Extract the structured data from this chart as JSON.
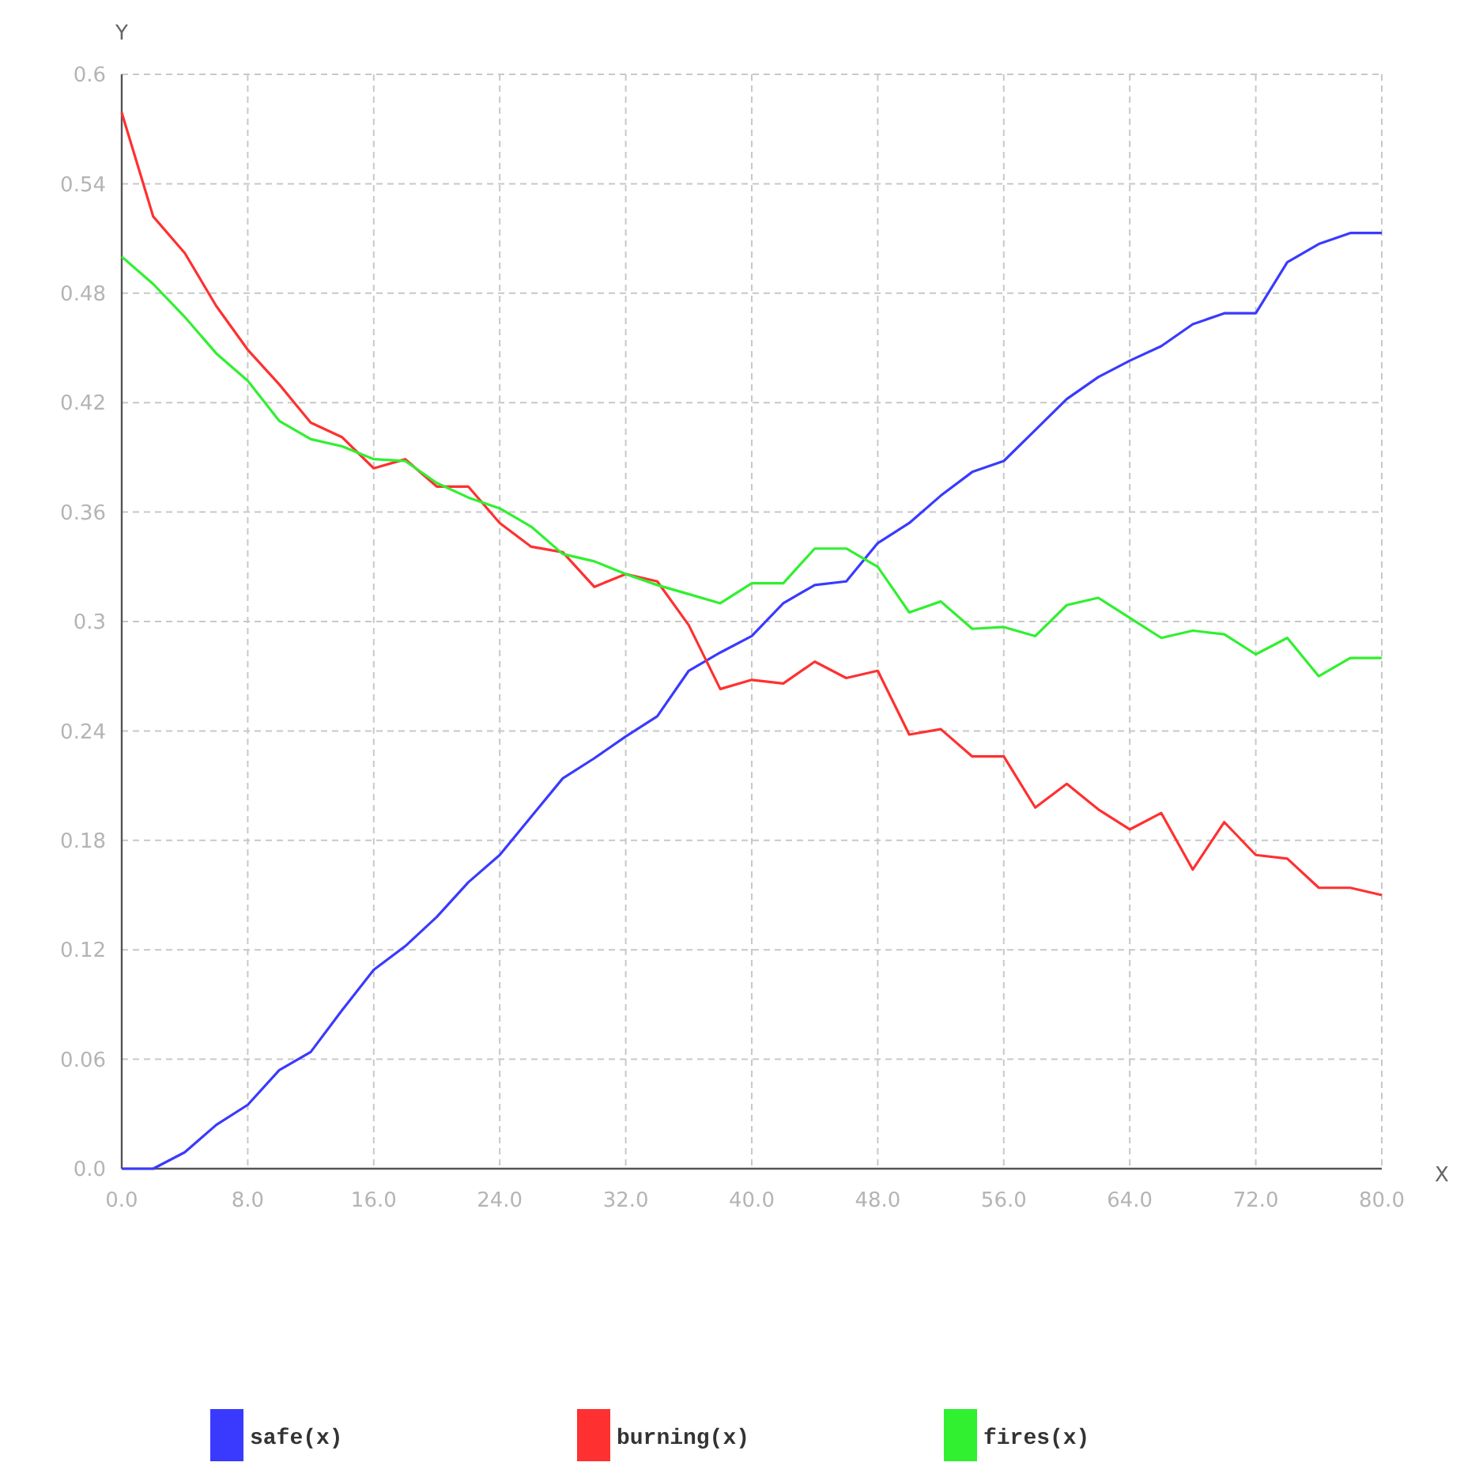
{
  "chart_data": {
    "type": "line",
    "xlabel": "X",
    "ylabel": "Y",
    "x": [
      0,
      2,
      4,
      6,
      8,
      10,
      12,
      14,
      16,
      18,
      20,
      22,
      24,
      26,
      28,
      30,
      32,
      34,
      36,
      38,
      40,
      42,
      44,
      46,
      48,
      50,
      52,
      54,
      56,
      58,
      60,
      62,
      64,
      66,
      68,
      70,
      72,
      74,
      76,
      78,
      80
    ],
    "series": [
      {
        "name": "safe(x)",
        "color": "#3a3aff",
        "values": [
          0,
          0,
          0.009,
          0.024,
          0.035,
          0.054,
          0.064,
          0.087,
          0.109,
          0.122,
          0.138,
          0.157,
          0.172,
          0.193,
          0.214,
          0.225,
          0.237,
          0.248,
          0.273,
          0.283,
          0.292,
          0.31,
          0.32,
          0.322,
          0.343,
          0.354,
          0.369,
          0.382,
          0.388,
          0.405,
          0.422,
          0.434,
          0.443,
          0.451,
          0.463,
          0.469,
          0.469,
          0.497,
          0.507,
          0.513,
          0.513
        ]
      },
      {
        "name": "burning(x)",
        "color": "#ff3030",
        "values": [
          0.579,
          0.522,
          0.502,
          0.473,
          0.449,
          0.43,
          0.409,
          0.401,
          0.384,
          0.389,
          0.374,
          0.374,
          0.354,
          0.341,
          0.338,
          0.319,
          0.326,
          0.322,
          0.298,
          0.263,
          0.268,
          0.266,
          0.278,
          0.269,
          0.273,
          0.238,
          0.241,
          0.226,
          0.226,
          0.198,
          0.211,
          0.197,
          0.186,
          0.195,
          0.164,
          0.19,
          0.172,
          0.17,
          0.154,
          0.154,
          0.15
        ]
      },
      {
        "name": "fires(x)",
        "color": "#30f030",
        "values": [
          0.5,
          0.485,
          0.467,
          0.447,
          0.432,
          0.41,
          0.4,
          0.396,
          0.389,
          0.388,
          0.376,
          0.368,
          0.362,
          0.352,
          0.337,
          0.333,
          0.326,
          0.32,
          0.315,
          0.31,
          0.321,
          0.321,
          0.34,
          0.34,
          0.33,
          0.305,
          0.311,
          0.296,
          0.297,
          0.292,
          0.309,
          0.313,
          0.302,
          0.291,
          0.295,
          0.293,
          0.282,
          0.291,
          0.27,
          0.28,
          0.28
        ]
      }
    ],
    "xlim": [
      0,
      80
    ],
    "xticks": [
      {
        "value": 0,
        "label": "0.0"
      },
      {
        "value": 8,
        "label": "8.0"
      },
      {
        "value": 16,
        "label": "16.0"
      },
      {
        "value": 24,
        "label": "24.0"
      },
      {
        "value": 32,
        "label": "32.0"
      },
      {
        "value": 40,
        "label": "40.0"
      },
      {
        "value": 48,
        "label": "48.0"
      },
      {
        "value": 56,
        "label": "56.0"
      },
      {
        "value": 64,
        "label": "64.0"
      },
      {
        "value": 72,
        "label": "72.0"
      },
      {
        "value": 80,
        "label": "80.0"
      }
    ],
    "ylim": [
      0,
      0.6
    ],
    "yticks": [
      {
        "value": 0,
        "label": "0.0"
      },
      0.06,
      0.12,
      0.18,
      0.24,
      0.3,
      0.36,
      0.42,
      0.48,
      0.54,
      0.6
    ],
    "grid": true,
    "legend": "bottom",
    "marker": "none",
    "line_style": "solid"
  }
}
